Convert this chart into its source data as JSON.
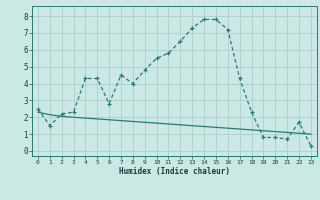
{
  "x": [
    0,
    1,
    2,
    3,
    4,
    5,
    6,
    7,
    8,
    9,
    10,
    11,
    12,
    13,
    14,
    15,
    16,
    17,
    18,
    19,
    20,
    21,
    22,
    23
  ],
  "y_main": [
    2.5,
    1.5,
    2.2,
    2.3,
    4.3,
    4.3,
    2.8,
    4.5,
    4.0,
    4.8,
    5.5,
    5.8,
    6.5,
    7.3,
    7.8,
    7.8,
    7.2,
    4.3,
    2.3,
    0.8,
    0.8,
    0.7,
    1.7,
    0.3
  ],
  "y_line": [
    2.3,
    2.15,
    2.05,
    2.0,
    1.95,
    1.9,
    1.85,
    1.8,
    1.75,
    1.7,
    1.65,
    1.6,
    1.55,
    1.5,
    1.45,
    1.4,
    1.35,
    1.3,
    1.25,
    1.2,
    1.15,
    1.1,
    1.05,
    1.0
  ],
  "line_color": "#2a7a6e",
  "bg_color": "#cce8e5",
  "grid_color": "#aad0cc",
  "xlabel": "Humidex (Indice chaleur)",
  "xtick_labels": [
    "0",
    "1",
    "2",
    "3",
    "4",
    "5",
    "6",
    "7",
    "8",
    "9",
    "10",
    "11",
    "12",
    "13",
    "14",
    "15",
    "16",
    "17",
    "18",
    "19",
    "20",
    "21",
    "22",
    "23"
  ],
  "ytick_labels": [
    "0",
    "1",
    "2",
    "3",
    "4",
    "5",
    "6",
    "7",
    "8"
  ],
  "yticks": [
    0,
    1,
    2,
    3,
    4,
    5,
    6,
    7,
    8
  ],
  "ylim": [
    -0.3,
    8.6
  ],
  "xlim": [
    -0.5,
    23.5
  ]
}
